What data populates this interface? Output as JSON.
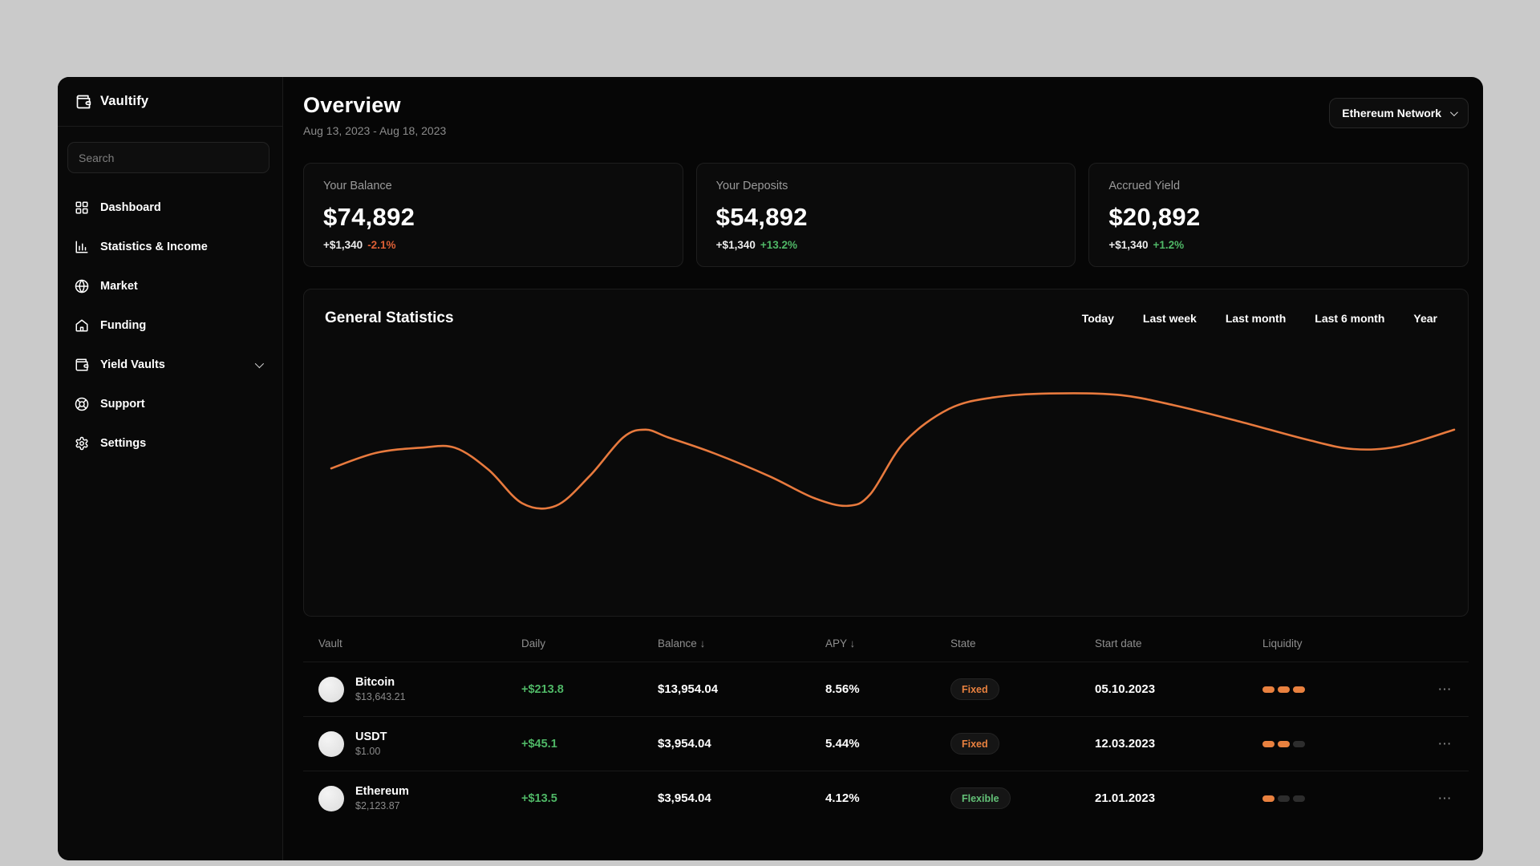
{
  "app": {
    "name": "Vaultify"
  },
  "sidebar": {
    "search_placeholder": "Search",
    "items": [
      {
        "label": "Dashboard",
        "icon": "dashboard-icon"
      },
      {
        "label": "Statistics & Income",
        "icon": "bar-chart-icon"
      },
      {
        "label": "Market",
        "icon": "globe-icon"
      },
      {
        "label": "Funding",
        "icon": "home-icon"
      },
      {
        "label": "Yield Vaults",
        "icon": "wallet-icon",
        "has_chevron": true
      },
      {
        "label": "Support",
        "icon": "lifebuoy-icon"
      },
      {
        "label": "Settings",
        "icon": "gear-icon"
      }
    ]
  },
  "header": {
    "title": "Overview",
    "date_range": "Aug 13, 2023 - Aug 18, 2023",
    "network_selector": "Ethereum Network"
  },
  "stat_cards": [
    {
      "label": "Your Balance",
      "value": "$74,892",
      "delta": "+$1,340",
      "change": "-2.1%",
      "direction": "down"
    },
    {
      "label": "Your Deposits",
      "value": "$54,892",
      "delta": "+$1,340",
      "change": "+13.2%",
      "direction": "up"
    },
    {
      "label": "Accrued Yield",
      "value": "$20,892",
      "delta": "+$1,340",
      "change": "+1.2%",
      "direction": "up"
    }
  ],
  "statistics_panel": {
    "title": "General Statistics",
    "filters": [
      "Today",
      "Last week",
      "Last month",
      "Last 6 month",
      "Year"
    ],
    "line_color": "#e87a3e"
  },
  "chart_data": {
    "type": "line",
    "title": "General Statistics",
    "xlabel": "",
    "ylabel": "",
    "axes_labeled": false,
    "grid": false,
    "legend": "none",
    "series_name": "portfolio-statistics",
    "note": "single smooth orange line, no visible axes or tick labels; points are [x%, y%] of plot area (y% = height above bottom)",
    "points_pct": [
      [
        0,
        37
      ],
      [
        4,
        49
      ],
      [
        8,
        53
      ],
      [
        11,
        53
      ],
      [
        14,
        36
      ],
      [
        17,
        10
      ],
      [
        20,
        8
      ],
      [
        23,
        31
      ],
      [
        26,
        61
      ],
      [
        28,
        67
      ],
      [
        30,
        61
      ],
      [
        34,
        49
      ],
      [
        39,
        31
      ],
      [
        43,
        14
      ],
      [
        46,
        8
      ],
      [
        48,
        17
      ],
      [
        51,
        57
      ],
      [
        55,
        83
      ],
      [
        59,
        92
      ],
      [
        64,
        95
      ],
      [
        70,
        94
      ],
      [
        75,
        86
      ],
      [
        81,
        73
      ],
      [
        87,
        59
      ],
      [
        91,
        52
      ],
      [
        95,
        54
      ],
      [
        100,
        67
      ]
    ]
  },
  "vault_table": {
    "columns": [
      {
        "label": "Vault",
        "sort": ""
      },
      {
        "label": "Daily",
        "sort": ""
      },
      {
        "label": "Balance",
        "sort": "↓"
      },
      {
        "label": "APY",
        "sort": "↓"
      },
      {
        "label": "State",
        "sort": ""
      },
      {
        "label": "Start date",
        "sort": ""
      },
      {
        "label": "Liquidity",
        "sort": ""
      }
    ],
    "row_menu": "⋯",
    "rows": [
      {
        "name": "Bitcoin",
        "price": "$13,643.21",
        "daily": "+$213.8",
        "balance": "$13,954.04",
        "apy": "8.56%",
        "state": "Fixed",
        "start_date": "05.10.2023",
        "liquidity": 3
      },
      {
        "name": "USDT",
        "price": "$1.00",
        "daily": "+$45.1",
        "balance": "$3,954.04",
        "apy": "5.44%",
        "state": "Fixed",
        "start_date": "12.03.2023",
        "liquidity": 2
      },
      {
        "name": "Ethereum",
        "price": "$2,123.87",
        "daily": "+$13.5",
        "balance": "$3,954.04",
        "apy": "4.12%",
        "state": "Flexible",
        "start_date": "21.01.2023",
        "liquidity": 1
      }
    ]
  },
  "colors": {
    "accent_orange": "#e87a3e",
    "positive_green": "#4fb766",
    "negative_orange_red": "#dd5f35",
    "surface": "#0b0b0b",
    "background": "#060606",
    "page_backdrop": "#cacaca"
  }
}
